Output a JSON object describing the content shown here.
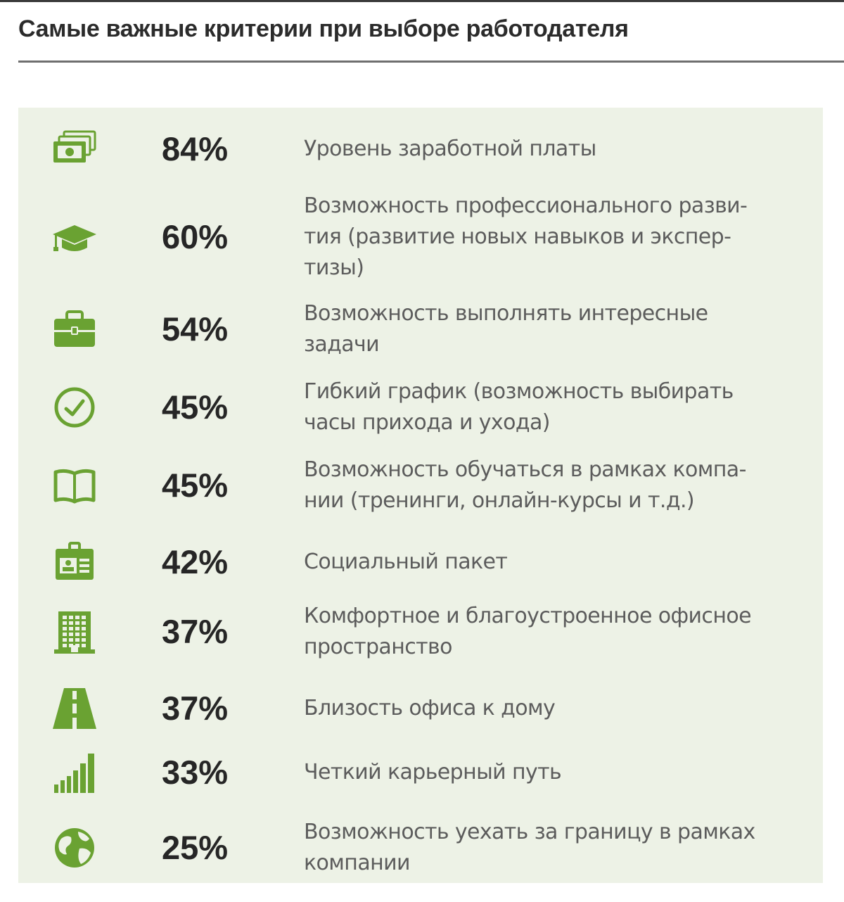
{
  "title": "Самые важные критерии при выборе работодателя",
  "chart_data": {
    "type": "table",
    "colors": {
      "icon": "#6aa232",
      "panel": "#edf2e6",
      "value_text": "#262626",
      "label_text": "#5c5c5c"
    },
    "rows": [
      {
        "icon": "money-icon",
        "value": "84%",
        "label_lines": [
          "Уровень заработной платы"
        ]
      },
      {
        "icon": "graduation-cap-icon",
        "value": "60%",
        "label_lines": [
          "Возможность профессионального разви-",
          "тия (развитие новых навыков и экспер-",
          "тизы)"
        ]
      },
      {
        "icon": "briefcase-icon",
        "value": "54%",
        "label_lines": [
          "Возможность выполнять интересные",
          "задачи"
        ]
      },
      {
        "icon": "clock-icon",
        "value": "45%",
        "label_lines": [
          "Гибкий график (возможность выбирать",
          "часы прихода и ухода)"
        ]
      },
      {
        "icon": "book-icon",
        "value": "45%",
        "label_lines": [
          "Возможность обучаться в рамках компа-",
          "нии (тренинги, онлайн-курсы и т.д.)"
        ]
      },
      {
        "icon": "id-badge-icon",
        "value": "42%",
        "label_lines": [
          "Социальный пакет"
        ]
      },
      {
        "icon": "office-building-icon",
        "value": "37%",
        "label_lines": [
          "Комфортное и благоустроенное офисное",
          "пространство"
        ]
      },
      {
        "icon": "road-icon",
        "value": "37%",
        "label_lines": [
          "Близость офиса к дому"
        ]
      },
      {
        "icon": "signal-bars-icon",
        "value": "33%",
        "label_lines": [
          "Четкий карьерный путь"
        ]
      },
      {
        "icon": "globe-icon",
        "value": "25%",
        "label_lines": [
          "Возможность уехать за границу в рамках",
          "компании"
        ]
      }
    ]
  }
}
